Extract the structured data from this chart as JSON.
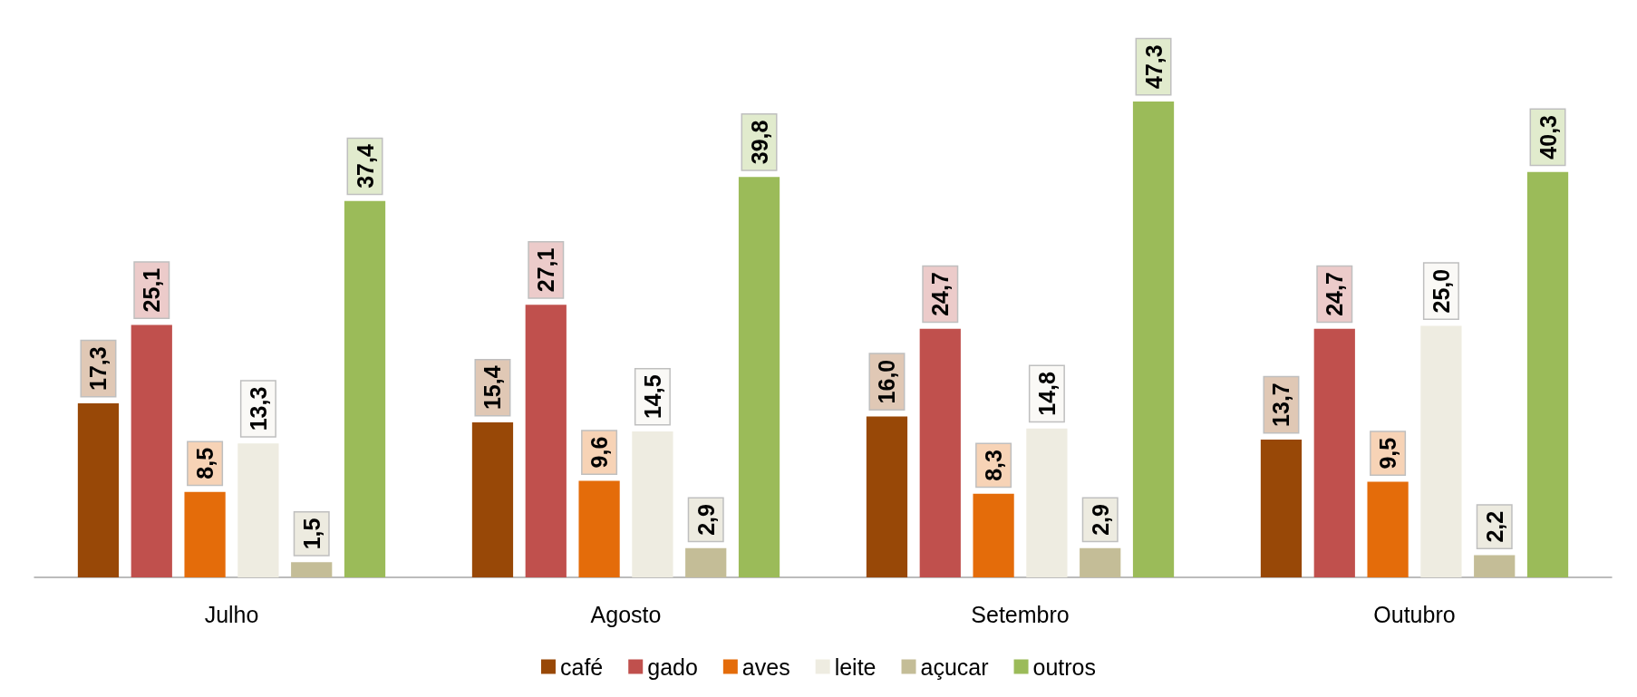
{
  "chart_data": {
    "type": "bar",
    "categories": [
      "Julho",
      "Agosto",
      "Setembro",
      "Outubro"
    ],
    "series": [
      {
        "name": "café",
        "color": "#984807",
        "values": [
          17.3,
          15.4,
          16.0,
          13.7
        ],
        "value_labels": [
          "17,3",
          "15,4",
          "16,0",
          "13,7"
        ]
      },
      {
        "name": "gado",
        "color": "#c0504d",
        "values": [
          25.1,
          27.1,
          24.7,
          24.7
        ],
        "value_labels": [
          "25,1",
          "27,1",
          "24,7",
          "24,7"
        ]
      },
      {
        "name": "aves",
        "color": "#e46c0a",
        "values": [
          8.5,
          9.6,
          8.3,
          9.5
        ],
        "value_labels": [
          "8,5",
          "9,6",
          "8,3",
          "9,5"
        ]
      },
      {
        "name": "leite",
        "color": "#eeece1",
        "values": [
          13.3,
          14.5,
          14.8,
          25.0
        ],
        "value_labels": [
          "13,3",
          "14,5",
          "14,8",
          "25,0"
        ]
      },
      {
        "name": "açucar",
        "color": "#c4bd97",
        "values": [
          1.5,
          2.9,
          2.9,
          2.2
        ],
        "value_labels": [
          "1,5",
          "2,9",
          "2,9",
          "2,2"
        ]
      },
      {
        "name": "outros",
        "color": "#9bbb59",
        "values": [
          37.4,
          39.8,
          47.3,
          40.3
        ],
        "value_labels": [
          "37,4",
          "39,8",
          "47,3",
          "40,3"
        ]
      }
    ],
    "legend": "bottom"
  }
}
